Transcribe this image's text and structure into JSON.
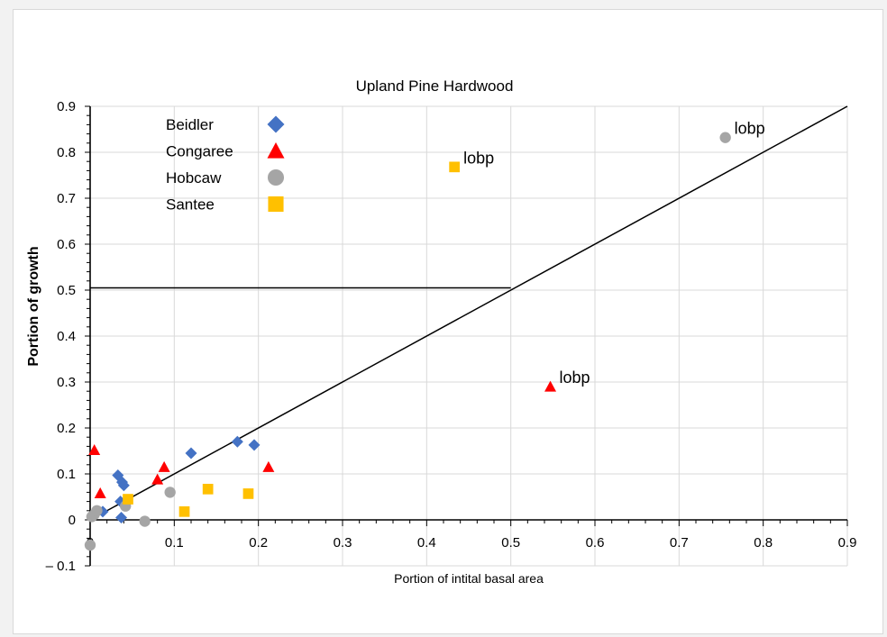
{
  "chart_data": {
    "type": "scatter",
    "title": "Upland Pine Hardwood",
    "xlabel": "Portion of intital basal area",
    "ylabel": "Portion  of  growth",
    "xlim": [
      0,
      0.9
    ],
    "ylim": [
      -0.1,
      0.9
    ],
    "x_ticks": [
      "0",
      "0.1",
      "0.2",
      "0.3",
      "0.4",
      "0.5",
      "0.6",
      "0.7",
      "0.8",
      "0.9"
    ],
    "y_ticks": [
      "– 0.1",
      "0",
      "0.1",
      "0.2",
      "0.3",
      "0.4",
      "0.5",
      "0.6",
      "0.7",
      "0.8",
      "0.9"
    ],
    "grid": true,
    "legend_position": "top-left",
    "series": [
      {
        "name": "Beidler",
        "marker": "diamond",
        "color": "#4472C4",
        "points": [
          [
            0.033,
            0.097
          ],
          [
            0.038,
            0.082
          ],
          [
            0.04,
            0.075
          ],
          [
            0.036,
            0.04
          ],
          [
            0.037,
            0.005
          ],
          [
            0.015,
            0.018
          ],
          [
            0.12,
            0.145
          ],
          [
            0.175,
            0.17
          ],
          [
            0.195,
            0.163
          ]
        ]
      },
      {
        "name": "Congaree",
        "marker": "triangle",
        "color": "#FF0000",
        "points": [
          [
            0.005,
            0.152
          ],
          [
            0.012,
            0.058
          ],
          [
            0.08,
            0.088
          ],
          [
            0.088,
            0.115
          ],
          [
            0.212,
            0.115
          ],
          [
            0.547,
            0.29
          ]
        ]
      },
      {
        "name": "Hobcaw",
        "marker": "circle",
        "color": "#A5A5A5",
        "points": [
          [
            0.0,
            -0.055
          ],
          [
            0.002,
            0.007
          ],
          [
            0.005,
            0.012
          ],
          [
            0.008,
            0.02
          ],
          [
            0.042,
            0.03
          ],
          [
            0.095,
            0.06
          ],
          [
            0.065,
            -0.003
          ],
          [
            0.755,
            0.832
          ]
        ]
      },
      {
        "name": "Santee",
        "marker": "square",
        "color": "#FFC000",
        "points": [
          [
            0.045,
            0.045
          ],
          [
            0.112,
            0.018
          ],
          [
            0.14,
            0.067
          ],
          [
            0.188,
            0.057
          ],
          [
            0.433,
            0.768
          ]
        ]
      }
    ],
    "reference_lines": [
      {
        "type": "diagonal",
        "from": [
          0,
          0
        ],
        "to": [
          0.9,
          0.9
        ]
      },
      {
        "type": "horizontal",
        "y": 0.505,
        "x_from": 0,
        "x_to": 0.5
      }
    ],
    "annotations": [
      {
        "text": "lobp",
        "x": 0.755,
        "y": 0.832
      },
      {
        "text": "lobp",
        "x": 0.433,
        "y": 0.768
      },
      {
        "text": "lobp",
        "x": 0.547,
        "y": 0.29
      }
    ]
  },
  "colors": {
    "grid": "#d9d9d9",
    "axis": "#000000",
    "reference_line": "#000000"
  }
}
